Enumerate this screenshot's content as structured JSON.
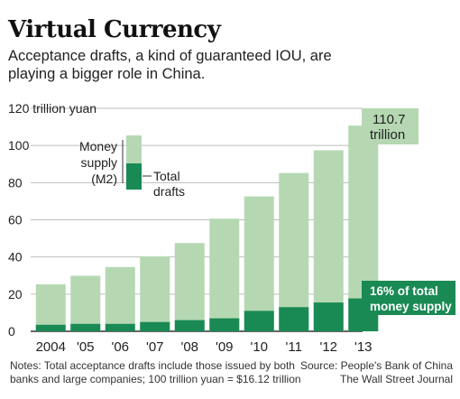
{
  "header": {
    "title": "Virtual Currency",
    "subtitle": "Acceptance drafts, a kind of guaranteed IOU, are playing a bigger role in China."
  },
  "footer": {
    "notes": "Notes: Total acceptance drafts include those issued by both banks and large companies; 100 trillion yuan = $16.12 trillion",
    "source_line1": "Source: People's Bank of China",
    "source_line2": "The Wall Street Journal"
  },
  "colors": {
    "money_supply": "#b5d8b2",
    "total_drafts": "#1a8a55",
    "callout_bg": "#1a8a55",
    "callout_light_bg": "#b5d8b2",
    "grid": "#bdbdbd",
    "axis": "#333333"
  },
  "chart_data": {
    "type": "bar",
    "stacked": true,
    "categories": [
      "2004",
      "'05",
      "'06",
      "'07",
      "'08",
      "'09",
      "'10",
      "'11",
      "'12",
      "'13"
    ],
    "series": [
      {
        "name": "Total drafts",
        "values": [
          3.5,
          4,
          4,
          5,
          6,
          7,
          11,
          13,
          15.5,
          17.7
        ]
      },
      {
        "name": "Money supply (M2)",
        "values": [
          25.3,
          29.9,
          34.6,
          40.3,
          47.5,
          60.6,
          72.6,
          85.2,
          97.4,
          110.7
        ]
      }
    ],
    "ylim": [
      0,
      120
    ],
    "yticks": [
      0,
      20,
      40,
      60,
      80,
      100,
      120
    ],
    "ytick_labels": [
      "0",
      "20",
      "40",
      "60",
      "80",
      "100",
      "120 trillion yuan"
    ],
    "grid": true,
    "legend": {
      "money_supply_label_line1": "Money",
      "money_supply_label_line2": "supply",
      "money_supply_label_line3": "(M2)",
      "drafts_label_line1": "Total",
      "drafts_label_line2": "drafts",
      "placement": "top-left"
    },
    "annotations": {
      "top_line1": "110.7",
      "top_line2": "trillion",
      "bottom_line1": "16% of total",
      "bottom_line2": "money supply"
    }
  }
}
